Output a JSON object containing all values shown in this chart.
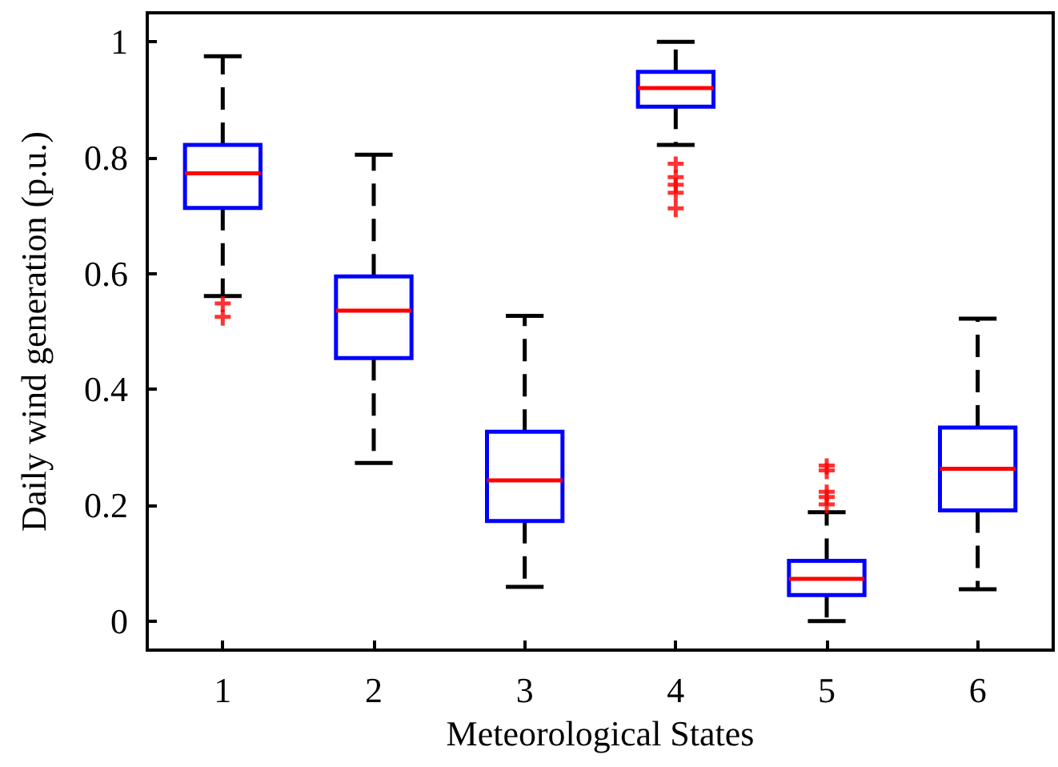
{
  "chart_data": {
    "type": "box",
    "xlabel": "Meteorological States",
    "ylabel": "Daily wind generation (p.u.)",
    "categories": [
      "1",
      "2",
      "3",
      "4",
      "5",
      "6"
    ],
    "ylim": [
      -0.05,
      1.05
    ],
    "yticks": [
      0,
      0.2,
      0.4,
      0.6,
      0.8,
      1
    ],
    "grid": false,
    "series": [
      {
        "color": "#0000ff",
        "boxes": [
          {
            "low": 0.561,
            "q1": 0.713,
            "median": 0.773,
            "q3": 0.822,
            "high": 0.975,
            "outliers": [
              0.547,
              0.524
            ]
          },
          {
            "low": 0.273,
            "q1": 0.454,
            "median": 0.536,
            "q3": 0.595,
            "high": 0.805
          },
          {
            "low": 0.059,
            "q1": 0.173,
            "median": 0.243,
            "q3": 0.327,
            "high": 0.527
          },
          {
            "low": 0.822,
            "q1": 0.888,
            "median": 0.92,
            "q3": 0.948,
            "high": 1.0,
            "outliers": [
              0.788,
              0.765,
              0.752,
              0.738,
              0.711
            ]
          },
          {
            "low": 0.0,
            "q1": 0.045,
            "median": 0.073,
            "q3": 0.104,
            "high": 0.188,
            "outliers": [
              0.267,
              0.259,
              0.222,
              0.213,
              0.2
            ]
          },
          {
            "low": 0.055,
            "q1": 0.191,
            "median": 0.263,
            "q3": 0.334,
            "high": 0.522
          }
        ]
      }
    ]
  }
}
